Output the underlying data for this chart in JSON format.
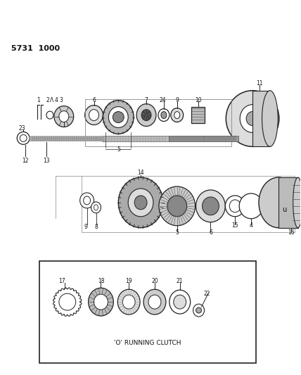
{
  "title": "5731  1000",
  "background_color": "#ffffff",
  "line_color": "#222222",
  "text_color": "#111111",
  "box_label": "'O' RUNNING CLUTCH",
  "figsize": [
    4.28,
    5.33
  ],
  "dpi": 100
}
